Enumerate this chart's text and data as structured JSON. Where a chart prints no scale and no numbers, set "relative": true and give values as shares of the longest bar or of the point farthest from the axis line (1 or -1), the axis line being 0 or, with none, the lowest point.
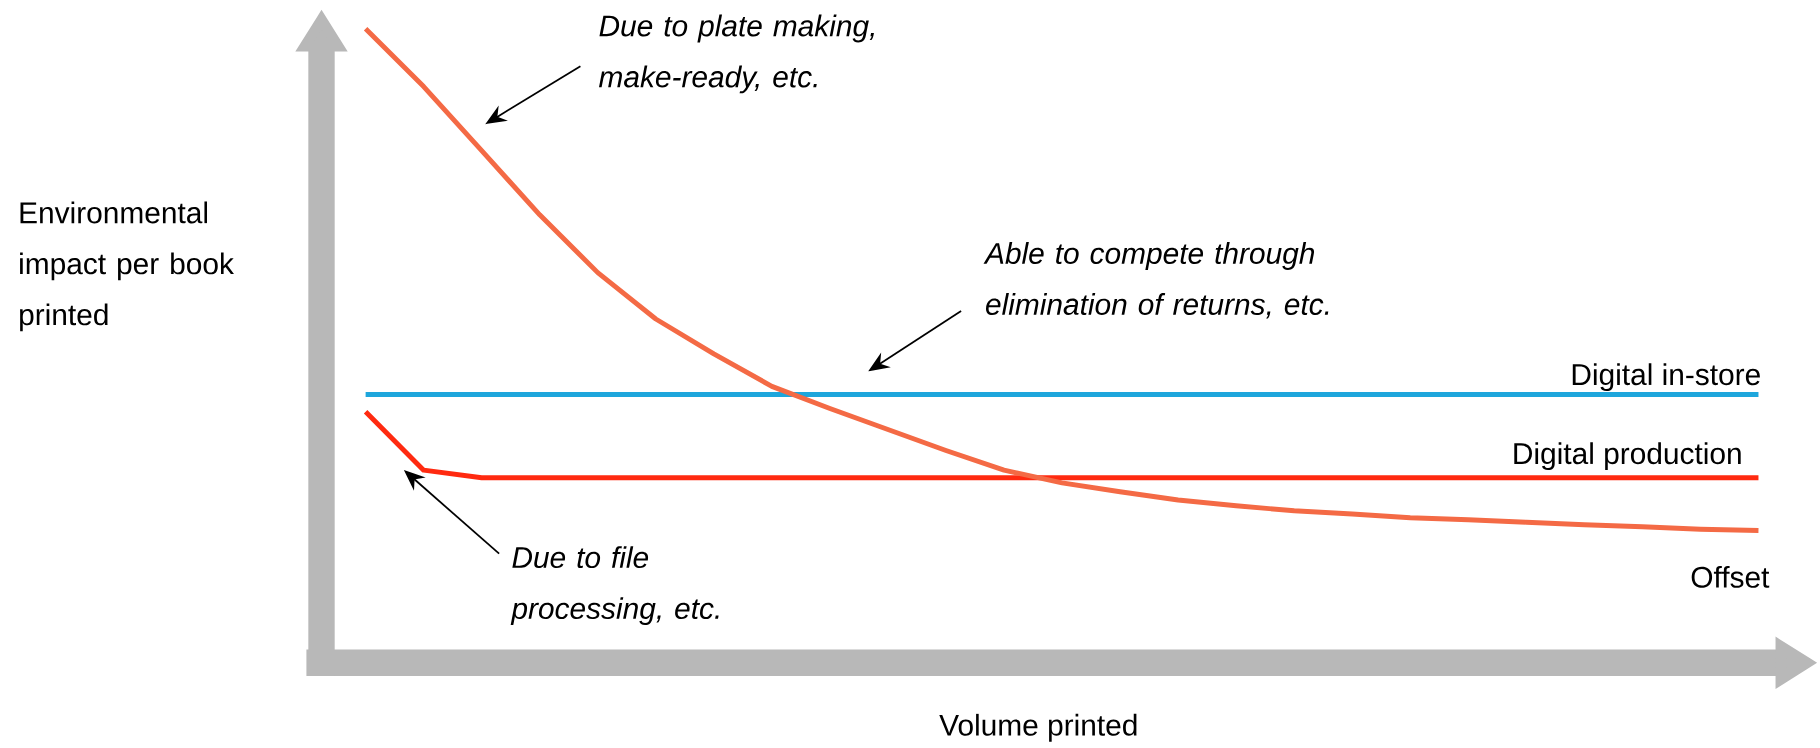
{
  "chart_data": {
    "type": "line",
    "relative": true,
    "xlabel": "Volume printed",
    "ylabel": "Environmental impact per book printed",
    "categories": [
      null,
      null,
      null,
      null,
      null,
      null,
      null,
      null,
      null,
      null,
      null,
      null,
      null,
      null,
      null,
      null,
      null,
      null,
      null,
      null,
      null,
      null,
      null,
      null,
      null
    ],
    "series": [
      {
        "name": "Digital in-store",
        "color": "#1ea6dc",
        "values": [
          0.424,
          0.424,
          0.424,
          0.424,
          0.424,
          0.424,
          0.424,
          0.424,
          0.424,
          0.424,
          0.424,
          0.424,
          0.424,
          0.424,
          0.424,
          0.424,
          0.424,
          0.424,
          0.424,
          0.424,
          0.424,
          0.424,
          0.424,
          0.424,
          0.424
        ]
      },
      {
        "name": "Digital production",
        "color": "#ff2a10",
        "values": [
          0.397,
          0.305,
          0.293,
          0.293,
          0.293,
          0.293,
          0.293,
          0.293,
          0.293,
          0.293,
          0.293,
          0.293,
          0.293,
          0.293,
          0.293,
          0.293,
          0.293,
          0.293,
          0.293,
          0.293,
          0.293,
          0.293,
          0.293,
          0.293,
          0.293
        ]
      },
      {
        "name": "Offset",
        "color": "#f46a45",
        "values": [
          1.0,
          0.909,
          0.808,
          0.707,
          0.616,
          0.543,
          0.488,
          0.437,
          0.402,
          0.369,
          0.336,
          0.305,
          0.285,
          0.271,
          0.258,
          0.249,
          0.241,
          0.236,
          0.23,
          0.227,
          0.223,
          0.219,
          0.216,
          0.212,
          0.21
        ]
      }
    ],
    "annotations": [
      "Due to plate making, make-ready, etc.",
      "Able to compete through elimination of returns, etc.",
      "Due to file processing, etc."
    ]
  }
}
